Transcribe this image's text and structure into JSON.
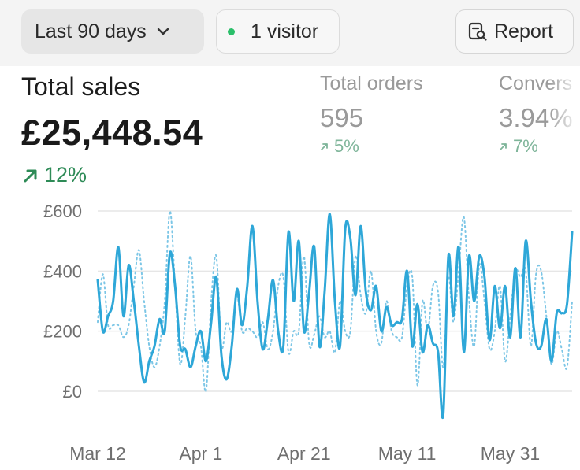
{
  "toolbar": {
    "period_label": "Last 90 days",
    "period_icon": "chevron-down-icon",
    "visitors_label": "1 visitor",
    "visitors_dot_color": "#2bbf6a",
    "report_label": "Report",
    "report_icon": "report-search-icon"
  },
  "metrics": {
    "total_sales": {
      "label": "Total sales",
      "value": "£25,448.54",
      "change": "12%",
      "direction": "up",
      "change_color": "#2e8b57"
    },
    "total_orders": {
      "label": "Total orders",
      "value": "595",
      "change": "5%",
      "direction": "up"
    },
    "conversion": {
      "label": "Convers",
      "value": "3.94%",
      "change": "7%",
      "direction": "up"
    }
  },
  "chart_data": {
    "type": "line",
    "title": "",
    "xlabel": "",
    "ylabel": "",
    "ylim": [
      -40,
      600
    ],
    "yticks": [
      "£600",
      "£400",
      "£200",
      "£0"
    ],
    "ytick_values": [
      600,
      400,
      200,
      0
    ],
    "xticks": [
      "Mar 12",
      "Apr 1",
      "Apr 21",
      "May 11",
      "May 31"
    ],
    "xtick_index": [
      0,
      20,
      40,
      60,
      80
    ],
    "grid": true,
    "line_color": "#2ea7d8",
    "series": [
      {
        "style": "solid",
        "values": [
          370,
          200,
          250,
          300,
          480,
          250,
          420,
          300,
          150,
          30,
          100,
          150,
          240,
          200,
          460,
          350,
          150,
          140,
          80,
          150,
          200,
          100,
          230,
          380,
          120,
          40,
          150,
          340,
          220,
          350,
          550,
          300,
          140,
          240,
          370,
          200,
          150,
          530,
          300,
          500,
          200,
          330,
          480,
          150,
          330,
          590,
          300,
          150,
          540,
          510,
          320,
          550,
          330,
          270,
          350,
          200,
          280,
          220,
          230,
          240,
          400,
          150,
          290,
          130,
          220,
          160,
          130,
          -80,
          450,
          250,
          480,
          130,
          450,
          300,
          450,
          380,
          170,
          350,
          210,
          350,
          180,
          410,
          180,
          500,
          300,
          160,
          150,
          240,
          100,
          260,
          260,
          290,
          530
        ]
      },
      {
        "style": "dotted",
        "values": [
          230,
          390,
          220,
          220,
          220,
          180,
          220,
          350,
          470,
          300,
          150,
          80,
          150,
          300,
          600,
          350,
          90,
          250,
          450,
          200,
          150,
          0,
          300,
          450,
          150,
          230,
          200,
          320,
          200,
          210,
          200,
          180,
          230,
          140,
          200,
          350,
          380,
          130,
          200,
          200,
          450,
          160,
          190,
          250,
          180,
          200,
          130,
          300,
          200,
          200,
          450,
          320,
          260,
          400,
          200,
          160,
          300,
          200,
          180,
          180,
          350,
          380,
          20,
          300,
          200,
          350,
          330,
          80,
          380,
          230,
          400,
          580,
          310,
          150,
          420,
          300,
          140,
          200,
          350,
          100,
          250,
          400,
          380,
          400,
          150,
          390,
          400,
          250,
          90,
          200,
          140,
          80,
          300
        ]
      }
    ]
  }
}
